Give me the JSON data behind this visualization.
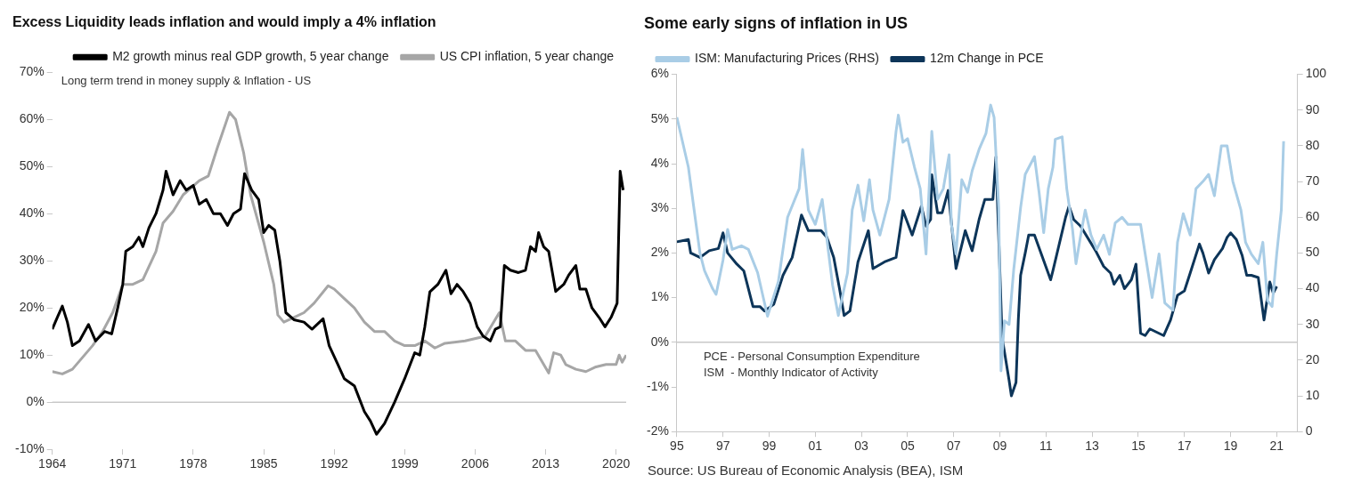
{
  "chart_data": [
    {
      "type": "line",
      "title": "Excess Liquidity leads inflation and would imply a 4% inflation",
      "legend": "top right",
      "marker": "none",
      "xlim": [
        1964,
        2021
      ],
      "xticks": [
        1964,
        1971,
        1978,
        1985,
        1992,
        1999,
        2006,
        2013,
        2020
      ],
      "ylim": [
        -10,
        70
      ],
      "yticks": [
        {
          "value": -10,
          "label": "-10%"
        },
        {
          "value": 0,
          "label": "0%"
        },
        {
          "value": 10,
          "label": "10%"
        },
        {
          "value": 20,
          "label": "20%"
        },
        {
          "value": 30,
          "label": "30%"
        },
        {
          "value": 40,
          "label": "40%"
        },
        {
          "value": 50,
          "label": "50%"
        },
        {
          "value": 60,
          "label": "60%"
        },
        {
          "value": 70,
          "label": "70%"
        }
      ],
      "ref_lines": [
        {
          "axis": "y",
          "value": 0,
          "color": "#c8c8c8"
        }
      ],
      "annotations": [
        "Long term trend in money supply & Inflation - US"
      ],
      "series": [
        {
          "name": "M2 growth minus real GDP growth, 5 year change",
          "color": "#000000",
          "x": [
            1964,
            1964.5,
            1965,
            1965.5,
            1966,
            1966.7,
            1967.6,
            1968.3,
            1969.2,
            1969.9,
            1970.5,
            1971,
            1971.3,
            1972,
            1972.6,
            1973,
            1973.6,
            1974.3,
            1975,
            1975.3,
            1976,
            1976.7,
            1977.3,
            1978,
            1978.6,
            1979.3,
            1980,
            1980.7,
            1981.4,
            1982,
            1982.7,
            1983.1,
            1983.8,
            1984.5,
            1985,
            1985.5,
            1986.1,
            1986.6,
            1987.2,
            1988,
            1989,
            1989.8,
            1990.9,
            1991.5,
            1992.3,
            1993,
            1994,
            1995,
            1995.6,
            1996.2,
            1997,
            1998,
            1999,
            2000,
            2000.5,
            2001,
            2001.5,
            2002.3,
            2003.1,
            2003.6,
            2004.2,
            2004.8,
            2005.5,
            2006.2,
            2006.8,
            2007.5,
            2008,
            2008.5,
            2008.9,
            2009.5,
            2010.3,
            2011,
            2011.5,
            2012,
            2012.3,
            2012.8,
            2013.3,
            2014,
            2014.8,
            2015.3,
            2016,
            2016.4,
            2017,
            2017.6,
            2018.3,
            2018.9,
            2019.5,
            2020.1,
            2020.4,
            2020.7
          ],
          "values": [
            15.5,
            18,
            20.4,
            17,
            12,
            13,
            16.5,
            13,
            15,
            14.5,
            20,
            25,
            32,
            33,
            35,
            33,
            37,
            40,
            45,
            49,
            44,
            47,
            45,
            46,
            42,
            43,
            40,
            40,
            37.5,
            40,
            41,
            48.5,
            45,
            43,
            36,
            37.5,
            36.5,
            30,
            19,
            17.5,
            17,
            15.5,
            17.7,
            12,
            8.3,
            5,
            3.5,
            -2,
            -4,
            -6.8,
            -4.5,
            0,
            5,
            10.5,
            10,
            16,
            23.4,
            25,
            28,
            23,
            25,
            23.5,
            21,
            16,
            14,
            13,
            15.5,
            16,
            29,
            28,
            27.5,
            28,
            33,
            32,
            36,
            33,
            32,
            23.5,
            25,
            27,
            29,
            24,
            24,
            20,
            18,
            16,
            18,
            21,
            49,
            45
          ]
        },
        {
          "name": "US CPI inflation, 5 year change",
          "color": "#a6a6a6",
          "x": [
            1964,
            1965,
            1966,
            1967,
            1968,
            1969,
            1970,
            1971,
            1972,
            1973,
            1974.3,
            1975,
            1976,
            1977,
            1978.6,
            1979.5,
            1980.4,
            1981.6,
            1982.2,
            1983,
            1983.7,
            1985,
            1986,
            1986.4,
            1987,
            1988,
            1989,
            1990,
            1991.4,
            1992,
            1993,
            1994,
            1995,
            1996,
            1997,
            1998,
            1999,
            2000,
            2001,
            2002,
            2003,
            2005,
            2007,
            2008.4,
            2009,
            2010,
            2011,
            2012,
            2013.3,
            2013.8,
            2014.5,
            2015,
            2016,
            2017,
            2018,
            2019,
            2020,
            2020.3,
            2020.6,
            2021
          ],
          "values": [
            6.5,
            6,
            7,
            9.5,
            12,
            15,
            19,
            25,
            25,
            26,
            32,
            38,
            40.5,
            44,
            47,
            48,
            54,
            61.5,
            60,
            53,
            44,
            34,
            25,
            18.5,
            17,
            18,
            19,
            21,
            24.7,
            24,
            22,
            20,
            17,
            15,
            15,
            13,
            12,
            12,
            13,
            11.5,
            12.5,
            13,
            14,
            19,
            13,
            13,
            11,
            11,
            6.2,
            10.5,
            10,
            8,
            7,
            6.5,
            7.5,
            8,
            8,
            10,
            8.5,
            10
          ]
        }
      ]
    },
    {
      "type": "line",
      "title": "Some early signs of inflation in US",
      "legend": "top left",
      "marker": "none",
      "xlim": [
        1995,
        2021.9
      ],
      "xticks": [
        {
          "value": 1995,
          "label": "95"
        },
        {
          "value": 1997,
          "label": "97"
        },
        {
          "value": 1999,
          "label": "99"
        },
        {
          "value": 2001,
          "label": "01"
        },
        {
          "value": 2003,
          "label": "03"
        },
        {
          "value": 2005,
          "label": "05"
        },
        {
          "value": 2007,
          "label": "07"
        },
        {
          "value": 2009,
          "label": "09"
        },
        {
          "value": 2011,
          "label": "11"
        },
        {
          "value": 2013,
          "label": "13"
        },
        {
          "value": 2015,
          "label": "15"
        },
        {
          "value": 2017,
          "label": "17"
        },
        {
          "value": 2019,
          "label": "19"
        },
        {
          "value": 2021,
          "label": "21"
        }
      ],
      "ylim": [
        -2,
        6
      ],
      "yticks": [
        {
          "value": -2,
          "label": "-2%"
        },
        {
          "value": -1,
          "label": "-1%"
        },
        {
          "value": 0,
          "label": "0%"
        },
        {
          "value": 1,
          "label": "1%"
        },
        {
          "value": 2,
          "label": "2%"
        },
        {
          "value": 3,
          "label": "3%"
        },
        {
          "value": 4,
          "label": "4%"
        },
        {
          "value": 5,
          "label": "5%"
        },
        {
          "value": 6,
          "label": "6%"
        }
      ],
      "y2lim": [
        0,
        100
      ],
      "y2ticks": [
        0,
        10,
        20,
        30,
        40,
        50,
        60,
        70,
        80,
        90,
        100
      ],
      "ref_lines": [
        {
          "axis": "y",
          "value": 0,
          "color": "#c8c8c8"
        }
      ],
      "annotations": [
        "PCE - Personal Consumption Expenditure",
        "ISM  - Monthly Indicator of Activity",
        "Source: US Bureau of Economic Analysis (BEA), ISM"
      ],
      "series": [
        {
          "name": "ISM: Manufacturing Prices (RHS)",
          "color": "#a9cde6",
          "axis": "y2",
          "x": [
            1995,
            1995.5,
            1995.75,
            1996,
            1996.2,
            1996.55,
            1996.7,
            1997,
            1997.2,
            1997.4,
            1997.8,
            1998.1,
            1998.5,
            1998.93,
            1999.4,
            1999.8,
            2000.3,
            2000.45,
            2000.7,
            2001,
            2001.3,
            2001.5,
            2001.75,
            2002,
            2002.4,
            2002.6,
            2002.85,
            2003.1,
            2003.35,
            2003.5,
            2003.8,
            2004.2,
            2004.5,
            2004.6,
            2004.8,
            2005,
            2005.3,
            2005.55,
            2005.8,
            2006.05,
            2006.3,
            2006.55,
            2006.8,
            2006.9,
            2007.1,
            2007.35,
            2007.6,
            2007.8,
            2008.1,
            2008.4,
            2008.6,
            2008.75,
            2008.95,
            2009.05,
            2009.2,
            2009.4,
            2009.6,
            2009.9,
            2010.1,
            2010.5,
            2010.7,
            2010.9,
            2011.1,
            2011.3,
            2011.4,
            2011.7,
            2011.9,
            2012.15,
            2012.3,
            2012.5,
            2012.7,
            2012.95,
            2013.2,
            2013.5,
            2013.75,
            2014,
            2014.3,
            2014.55,
            2015.1,
            2015.3,
            2015.6,
            2015.9,
            2016.15,
            2016.5,
            2016.7,
            2016.95,
            2017.25,
            2017.5,
            2017.8,
            2018.05,
            2018.3,
            2018.6,
            2018.85,
            2019.1,
            2019.45,
            2019.65,
            2019.9,
            2020.2,
            2020.4,
            2020.6,
            2020.8,
            2021,
            2021.2,
            2021.3
          ],
          "values": [
            88,
            74,
            62,
            50,
            45,
            40,
            38.4,
            48,
            56.6,
            51,
            52,
            51,
            44.5,
            32.3,
            42,
            60,
            68,
            79,
            62,
            58,
            65,
            54,
            41,
            32.5,
            44.5,
            62,
            69,
            59,
            70.5,
            62,
            55,
            65,
            84,
            88.6,
            81,
            82,
            74,
            68,
            49.7,
            84,
            65,
            68,
            77.5,
            58,
            49.7,
            70.5,
            67,
            73,
            79,
            83.5,
            91.4,
            88,
            62.7,
            17,
            31,
            30,
            45.3,
            62.7,
            72,
            77,
            67,
            55.7,
            68,
            74,
            81.8,
            82.5,
            68,
            56.6,
            47,
            54.8,
            62,
            55,
            51,
            55,
            49.6,
            58.4,
            60,
            58,
            58,
            49.7,
            37.5,
            49.7,
            36,
            34,
            53,
            61,
            55,
            68,
            70,
            72,
            66,
            80,
            80,
            70,
            62,
            53,
            49.7,
            47,
            53,
            36.7,
            35,
            49.7,
            62,
            81.3
          ]
        },
        {
          "name": "12m Change in PCE",
          "color": "#0d3559",
          "x": [
            1995,
            1995.5,
            1995.6,
            1996,
            1996.4,
            1996.8,
            1997,
            1997.2,
            1997.6,
            1997.9,
            1998.3,
            1998.6,
            1998.8,
            1999.2,
            1999.6,
            2000,
            2000.4,
            2000.7,
            2001.25,
            2001.5,
            2001.8,
            2002.05,
            2002.25,
            2002.5,
            2002.85,
            2003.3,
            2003.5,
            2004,
            2004.5,
            2004.8,
            2005.2,
            2005.6,
            2005.8,
            2006,
            2006.05,
            2006.3,
            2006.5,
            2006.76,
            2007.1,
            2007.5,
            2007.8,
            2008.1,
            2008.35,
            2008.7,
            2008.83,
            2009.1,
            2009.4,
            2009.5,
            2009.7,
            2009.8,
            2009.9,
            2010.1,
            2010.25,
            2010.5,
            2011.2,
            2011.3,
            2011.85,
            2012,
            2012.2,
            2012.5,
            2013.15,
            2013.5,
            2013.8,
            2013.95,
            2014.2,
            2014.4,
            2014.7,
            2014.9,
            2015.1,
            2015.3,
            2015.5,
            2016.1,
            2016.4,
            2016.7,
            2017,
            2017.25,
            2017.65,
            2017.8,
            2018.05,
            2018.3,
            2018.65,
            2018.85,
            2019,
            2019.25,
            2019.5,
            2019.7,
            2019.9,
            2020.2,
            2020.45,
            2020.7,
            2020.85,
            2021
          ],
          "values": [
            2.25,
            2.3,
            2.0,
            1.9,
            2.05,
            2.1,
            2.45,
            2.0,
            1.75,
            1.6,
            0.8,
            0.8,
            0.7,
            0.85,
            1.5,
            1.9,
            2.85,
            2.5,
            2.5,
            2.35,
            1.9,
            1.2,
            0.6,
            0.7,
            1.8,
            2.5,
            1.65,
            1.8,
            1.9,
            2.95,
            2.4,
            3.05,
            2.6,
            2.75,
            3.75,
            2.9,
            2.9,
            3.4,
            1.65,
            2.5,
            2.05,
            2.75,
            3.2,
            3.2,
            4.15,
            0.1,
            -0.85,
            -1.2,
            -0.9,
            0.5,
            1.5,
            2.0,
            2.4,
            2.4,
            1.4,
            1.6,
            2.8,
            3.05,
            2.75,
            2.6,
            2.05,
            1.7,
            1.55,
            1.3,
            1.5,
            1.2,
            1.4,
            1.75,
            0.2,
            0.15,
            0.3,
            0.15,
            0.5,
            1.05,
            1.15,
            1.55,
            2.2,
            2.0,
            1.55,
            1.85,
            2.1,
            2.35,
            2.45,
            2.3,
            1.95,
            1.5,
            1.5,
            1.45,
            0.5,
            1.35,
            1.1,
            1.25
          ]
        }
      ]
    }
  ]
}
